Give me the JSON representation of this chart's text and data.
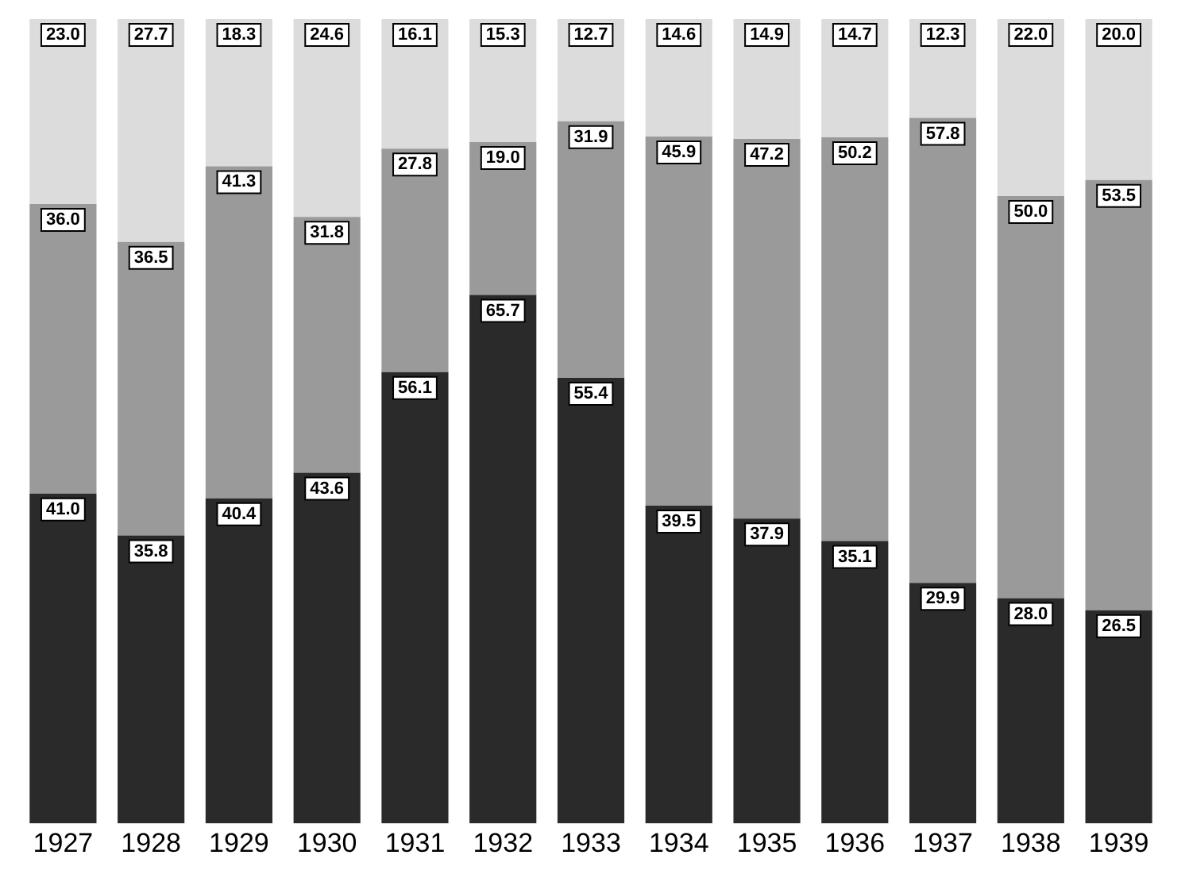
{
  "chart_data": {
    "type": "bar",
    "stacked": true,
    "tick_labels": "x",
    "grid": false,
    "legend": false,
    "categories": [
      "1927",
      "1928",
      "1929",
      "1930",
      "1931",
      "1932",
      "1933",
      "1934",
      "1935",
      "1936",
      "1937",
      "1938",
      "1939"
    ],
    "series": [
      {
        "color": "#2a2a2a",
        "values": [
          41.0,
          35.8,
          40.4,
          43.6,
          56.1,
          65.7,
          55.4,
          39.5,
          37.9,
          35.1,
          29.9,
          28.0,
          26.5
        ],
        "value_labels": [
          "41.0",
          "35.8",
          "40.4",
          "43.6",
          "56.1",
          "65.7",
          "55.4",
          "39.5",
          "37.9",
          "35.1",
          "29.9",
          "28.0",
          "26.5"
        ]
      },
      {
        "color": "#9a9a9a",
        "values": [
          36.0,
          36.5,
          41.3,
          31.8,
          27.8,
          19.0,
          31.9,
          45.9,
          47.2,
          50.2,
          57.8,
          50.0,
          53.5
        ],
        "value_labels": [
          "36.0",
          "36.5",
          "41.3",
          "31.8",
          "27.8",
          "19.0",
          "31.9",
          "45.9",
          "47.2",
          "50.2",
          "57.8",
          "50.0",
          "53.5"
        ]
      },
      {
        "color": "#dcdcdc",
        "values": [
          23.0,
          27.7,
          18.3,
          24.6,
          16.1,
          15.3,
          12.7,
          14.6,
          14.9,
          14.7,
          12.3,
          22.0,
          20.0
        ],
        "value_labels": [
          "23.0",
          "27.7",
          "18.3",
          "24.6",
          "16.1",
          "15.3",
          "12.7",
          "14.6",
          "14.9",
          "14.7",
          "12.3",
          "22.0",
          "20.0"
        ]
      }
    ]
  }
}
